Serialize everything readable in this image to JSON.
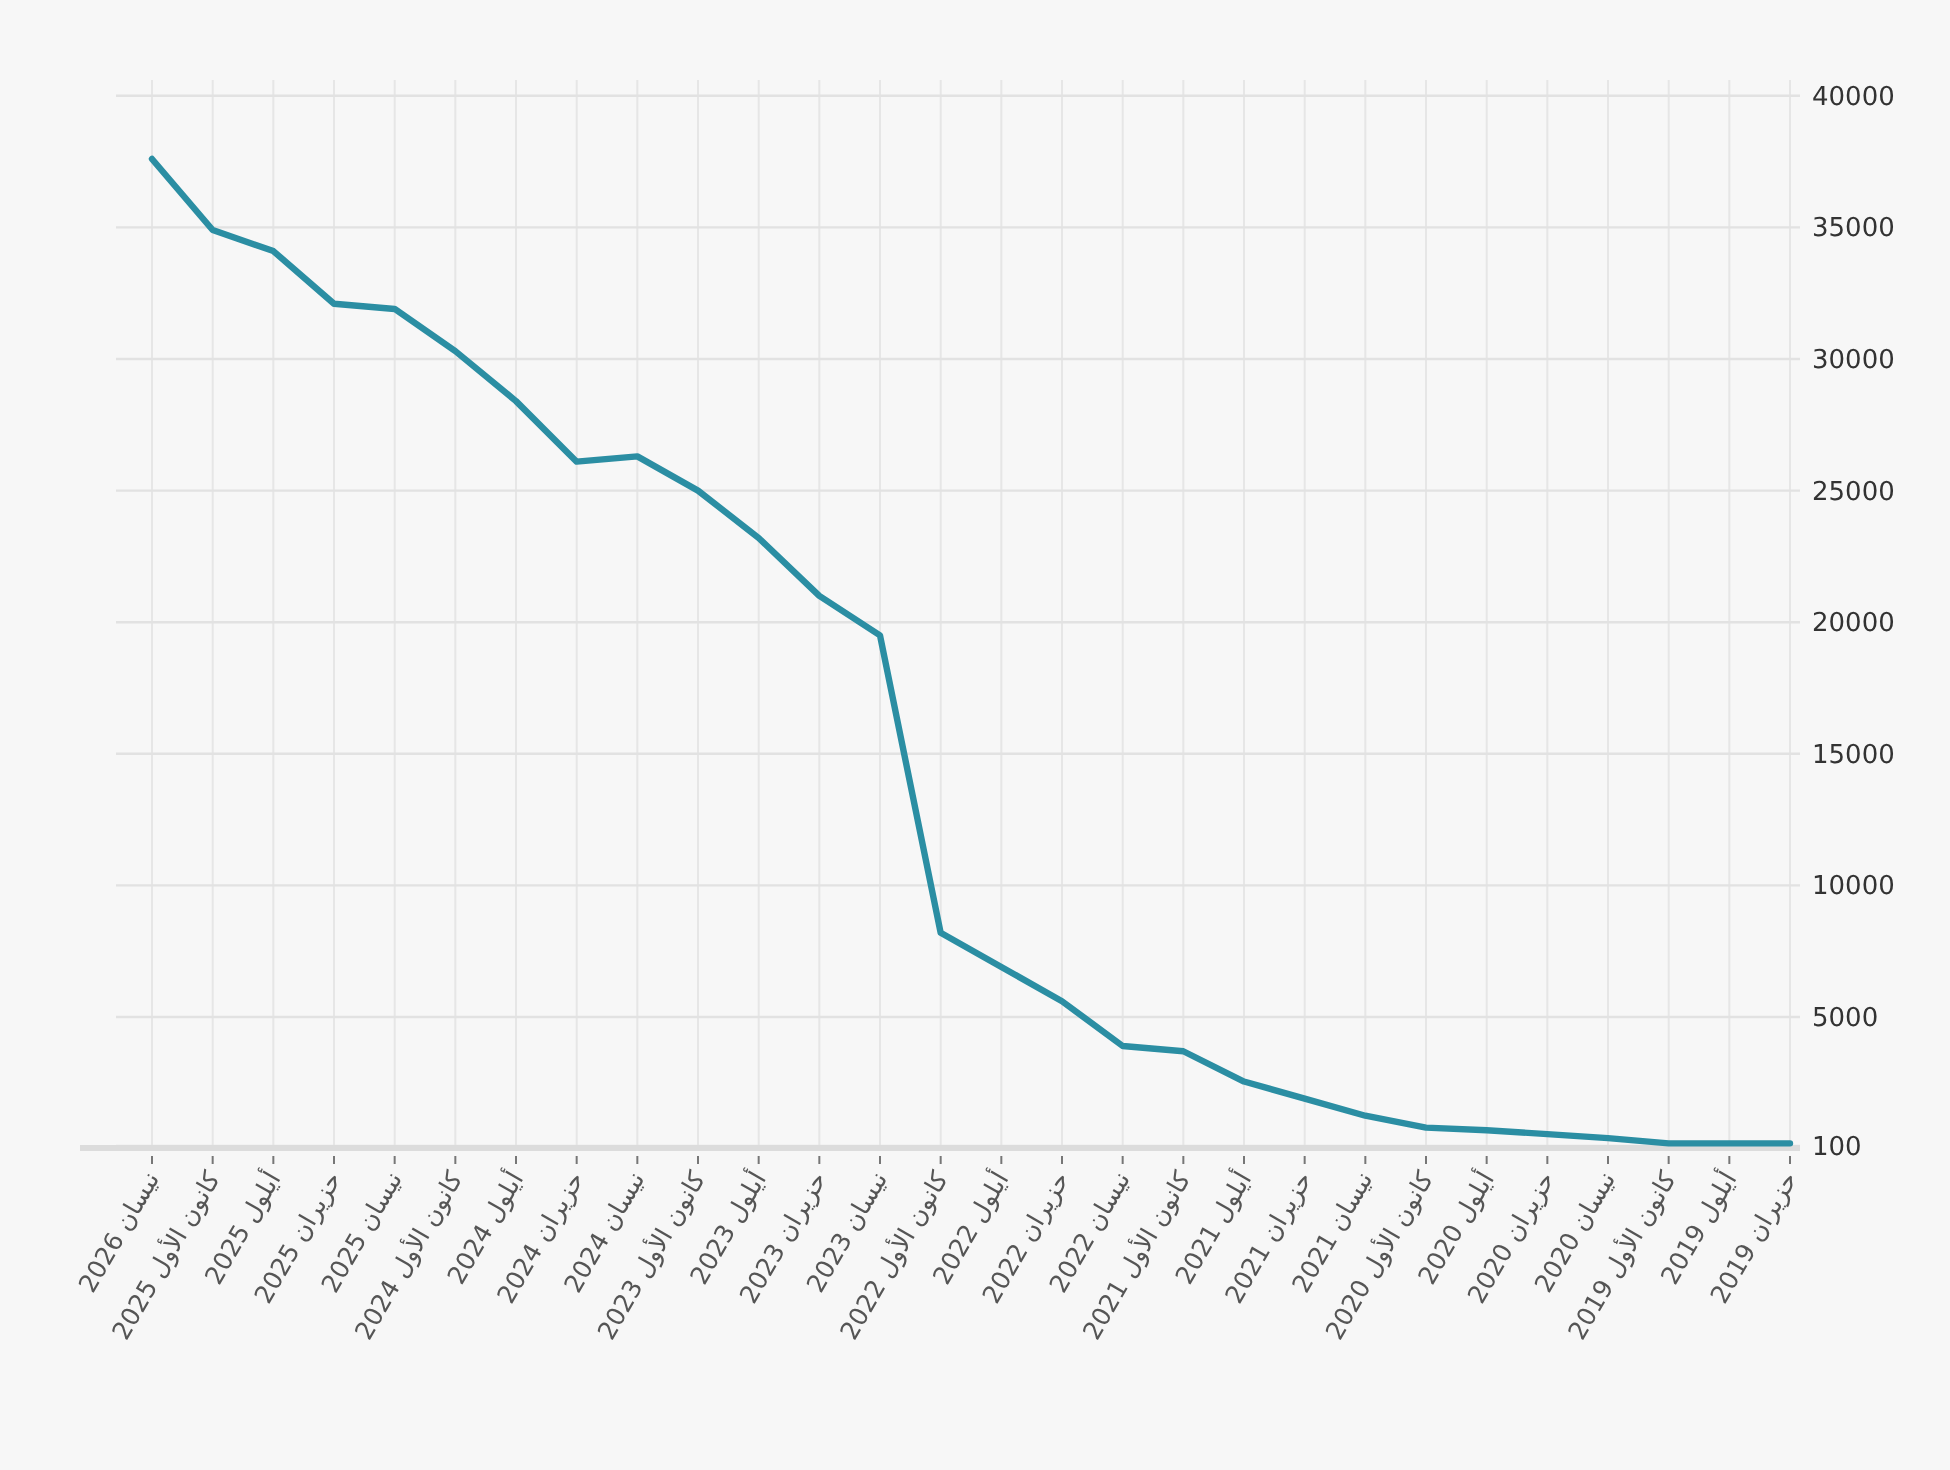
{
  "chart_data": {
    "type": "line",
    "categories": [
      "نيسان 2026",
      "كانون الأول 2025",
      "أيلول 2025",
      "حزيران 2025",
      "نيسان 2025",
      "كانون الأول 2024",
      "أيلول 2024",
      "حزيران 2024",
      "نيسان 2024",
      "كانون الأول 2023",
      "أيلول 2023",
      "حزيران 2023",
      "نيسان 2023",
      "كانون الأول 2022",
      "أيلول 2022",
      "حزيران 2022",
      "نيسان 2022",
      "كانون الأول 2021",
      "أيلول 2021",
      "حزيران 2021",
      "نيسان 2021",
      "كانون الأول 2020",
      "أيلول 2020",
      "حزيران 2020",
      "نيسان 2020",
      "كانون الأول 2019",
      "أيلول 2019",
      "حزيران 2019"
    ],
    "series": [
      {
        "color": "#2b8ea3",
        "values": [
          37600,
          34900,
          34100,
          32100,
          31900,
          30300,
          28400,
          26100,
          26300,
          25000,
          23200,
          21000,
          19500,
          8200,
          6900,
          5600,
          3900,
          3700,
          2550,
          1900,
          1250,
          800,
          700,
          550,
          400,
          200,
          200,
          200
        ]
      }
    ],
    "ylim": [
      100,
      40600
    ],
    "yticks": [
      100,
      5000,
      10000,
      15000,
      20000,
      25000,
      30000,
      35000,
      40000
    ],
    "grid": true
  }
}
